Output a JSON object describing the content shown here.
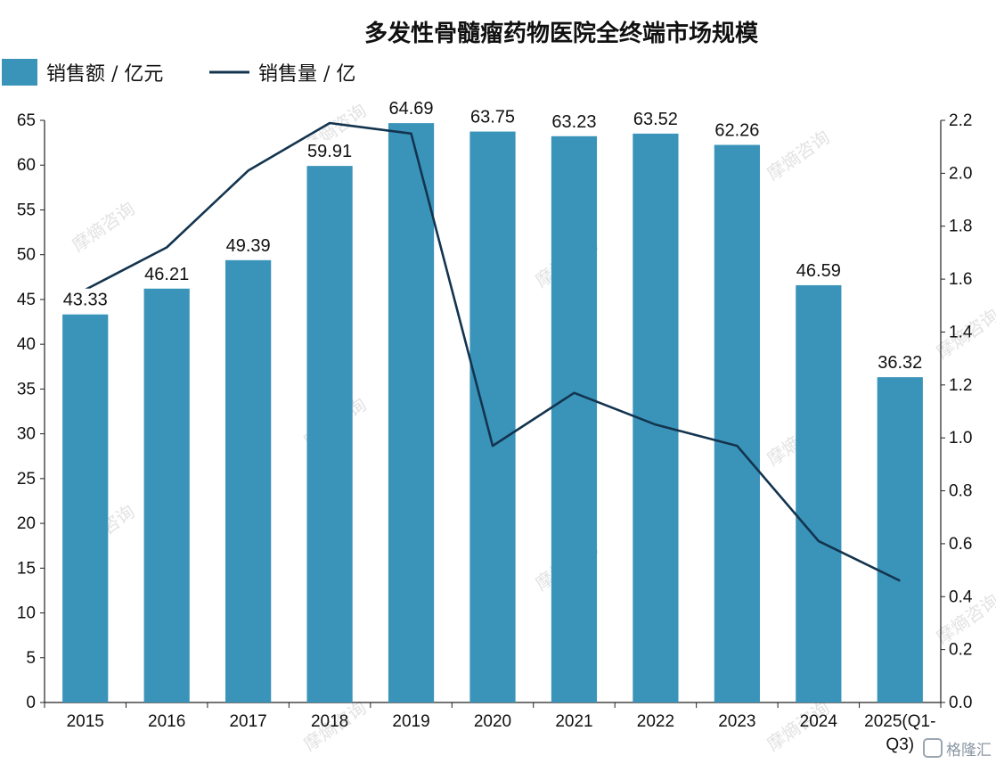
{
  "chart_data": {
    "type": "bar",
    "title": "多发性骨髓瘤药物医院全终端市场规模",
    "categories": [
      "2015",
      "2016",
      "2017",
      "2018",
      "2019",
      "2020",
      "2021",
      "2022",
      "2023",
      "2024",
      "2025(Q1-Q3)"
    ],
    "category_label_lines": [
      [
        "2015"
      ],
      [
        "2016"
      ],
      [
        "2017"
      ],
      [
        "2018"
      ],
      [
        "2019"
      ],
      [
        "2020"
      ],
      [
        "2021"
      ],
      [
        "2022"
      ],
      [
        "2023"
      ],
      [
        "2024"
      ],
      [
        "2025(Q1-",
        "Q3)"
      ]
    ],
    "series": [
      {
        "name": "销售额 / 亿元",
        "type": "bar",
        "axis": "left",
        "color": "#3a94ba",
        "values": [
          43.33,
          46.21,
          49.39,
          59.91,
          64.69,
          63.75,
          63.23,
          63.52,
          62.26,
          46.59,
          36.32
        ],
        "data_labels": [
          "43.33",
          "46.21",
          "49.39",
          "59.91",
          "64.69",
          "63.75",
          "63.23",
          "63.52",
          "62.26",
          "46.59",
          "36.32"
        ]
      },
      {
        "name": "销售量 / 亿",
        "type": "line",
        "axis": "right",
        "color": "#13344f",
        "values": [
          1.56,
          1.72,
          2.01,
          2.19,
          2.15,
          0.97,
          1.17,
          1.05,
          0.97,
          0.61,
          0.46
        ]
      }
    ],
    "y_left": {
      "min": 0,
      "max": 65,
      "step": 5,
      "ticks": [
        "0",
        "5",
        "10",
        "15",
        "20",
        "25",
        "30",
        "35",
        "40",
        "45",
        "50",
        "55",
        "60",
        "65"
      ]
    },
    "y_right": {
      "min": 0,
      "max": 2.2,
      "step": 0.2,
      "ticks": [
        "0.0",
        "0.2",
        "0.4",
        "0.6",
        "0.8",
        "1.0",
        "1.2",
        "1.4",
        "1.6",
        "1.8",
        "2.0",
        "2.2"
      ]
    },
    "grid": false,
    "legend_position": "top-left",
    "watermark": "摩熵咨询",
    "source_logo": "格隆汇"
  }
}
